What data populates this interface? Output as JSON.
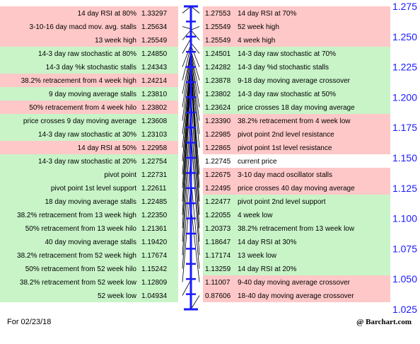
{
  "chart_data": {
    "type": "table",
    "title": "",
    "footer_date": "For 02/23/18",
    "brand": "@ Barchart.com",
    "axis": {
      "ticks": [
        "1.275",
        "1.250",
        "1.225",
        "1.200",
        "1.175",
        "1.150",
        "1.125",
        "1.100",
        "1.075",
        "1.050",
        "1.025"
      ],
      "min": 1.025,
      "max": 1.275,
      "color": "#1a1aff"
    },
    "colors": {
      "resistance_bg": "#ffc8c8",
      "support_bg": "#c8f4c8",
      "neutral_bg": "#ffffff",
      "axis": "#1a1aff"
    },
    "current_price": {
      "label": "current price",
      "value": "1.22745"
    },
    "left_rows": [
      {
        "label": "14 day RSI at 80%",
        "value": "1.33297",
        "type": "resistance"
      },
      {
        "label": "3-10-16 day macd mov. avg. stalls",
        "value": "1.25634",
        "type": "resistance"
      },
      {
        "label": "13 week high",
        "value": "1.25549",
        "type": "resistance"
      },
      {
        "label": "14-3 day raw stochastic at 80%",
        "value": "1.24850",
        "type": "support"
      },
      {
        "label": "14-3 day %k stochastic stalls",
        "value": "1.24343",
        "type": "support"
      },
      {
        "label": "38.2% retracement from 4 week high",
        "value": "1.24214",
        "type": "resistance"
      },
      {
        "label": "9 day moving average stalls",
        "value": "1.23810",
        "type": "support"
      },
      {
        "label": "50% retracement from 4 week hilo",
        "value": "1.23802",
        "type": "resistance"
      },
      {
        "label": "price crosses 9 day moving average",
        "value": "1.23608",
        "type": "support"
      },
      {
        "label": "14-3 day raw stochastic at 30%",
        "value": "1.23103",
        "type": "support"
      },
      {
        "label": "14 day RSI at 50%",
        "value": "1.22958",
        "type": "resistance"
      },
      {
        "label": "14-3 day raw stochastic at 20%",
        "value": "1.22754",
        "type": "support"
      },
      {
        "label": "pivot point",
        "value": "1.22731",
        "type": "support"
      },
      {
        "label": "pivot point 1st level support",
        "value": "1.22611",
        "type": "support"
      },
      {
        "label": "18 day moving average stalls",
        "value": "1.22485",
        "type": "support"
      },
      {
        "label": "38.2% retracement from 13 week high",
        "value": "1.22350",
        "type": "support"
      },
      {
        "label": "50% retracement from 13 week hilo",
        "value": "1.21361",
        "type": "support"
      },
      {
        "label": "40 day moving average stalls",
        "value": "1.19420",
        "type": "support"
      },
      {
        "label": "38.2% retracement from 52 week high",
        "value": "1.17674",
        "type": "support"
      },
      {
        "label": "50% retracement from 52 week hilo",
        "value": "1.15242",
        "type": "support"
      },
      {
        "label": "38.2% retracement from 52 week low",
        "value": "1.12809",
        "type": "support"
      },
      {
        "label": "52 week low",
        "value": "1.04934",
        "type": "support"
      }
    ],
    "right_rows": [
      {
        "label": "14 day RSI at 70%",
        "value": "1.27553",
        "type": "resistance"
      },
      {
        "label": "52 week high",
        "value": "1.25549",
        "type": "resistance"
      },
      {
        "label": "4 week high",
        "value": "1.25549",
        "type": "resistance"
      },
      {
        "label": "14-3 day raw stochastic at 70%",
        "value": "1.24501",
        "type": "support"
      },
      {
        "label": "14-3 day %d stochastic stalls",
        "value": "1.24282",
        "type": "support"
      },
      {
        "label": "9-18 day moving average crossover",
        "value": "1.23878",
        "type": "support"
      },
      {
        "label": "14-3 day raw stochastic at 50%",
        "value": "1.23802",
        "type": "support"
      },
      {
        "label": "price crosses 18 day moving average",
        "value": "1.23624",
        "type": "support"
      },
      {
        "label": "38.2% retracement from 4 week low",
        "value": "1.23390",
        "type": "resistance"
      },
      {
        "label": "pivot point 2nd level resistance",
        "value": "1.22985",
        "type": "resistance"
      },
      {
        "label": "pivot point 1st level resistance",
        "value": "1.22865",
        "type": "resistance"
      },
      {
        "label": "current price",
        "value": "1.22745",
        "type": "neutral"
      },
      {
        "label": "3-10 day macd oscillator stalls",
        "value": "1.22675",
        "type": "resistance"
      },
      {
        "label": "price crosses 40 day moving average",
        "value": "1.22495",
        "type": "resistance"
      },
      {
        "label": "pivot point 2nd level support",
        "value": "1.22477",
        "type": "support"
      },
      {
        "label": "4 week low",
        "value": "1.22055",
        "type": "support"
      },
      {
        "label": "38.2% retracement from 13 week low",
        "value": "1.20373",
        "type": "support"
      },
      {
        "label": "14 day RSI at 30%",
        "value": "1.18647",
        "type": "support"
      },
      {
        "label": "13 week low",
        "value": "1.17174",
        "type": "support"
      },
      {
        "label": "14 day RSI at 20%",
        "value": "1.13259",
        "type": "support"
      },
      {
        "label": "9-40 day moving average crossover",
        "value": "1.11007",
        "type": "resistance"
      },
      {
        "label": "18-40 day moving average crossover",
        "value": "0.87606",
        "type": "resistance"
      }
    ]
  }
}
